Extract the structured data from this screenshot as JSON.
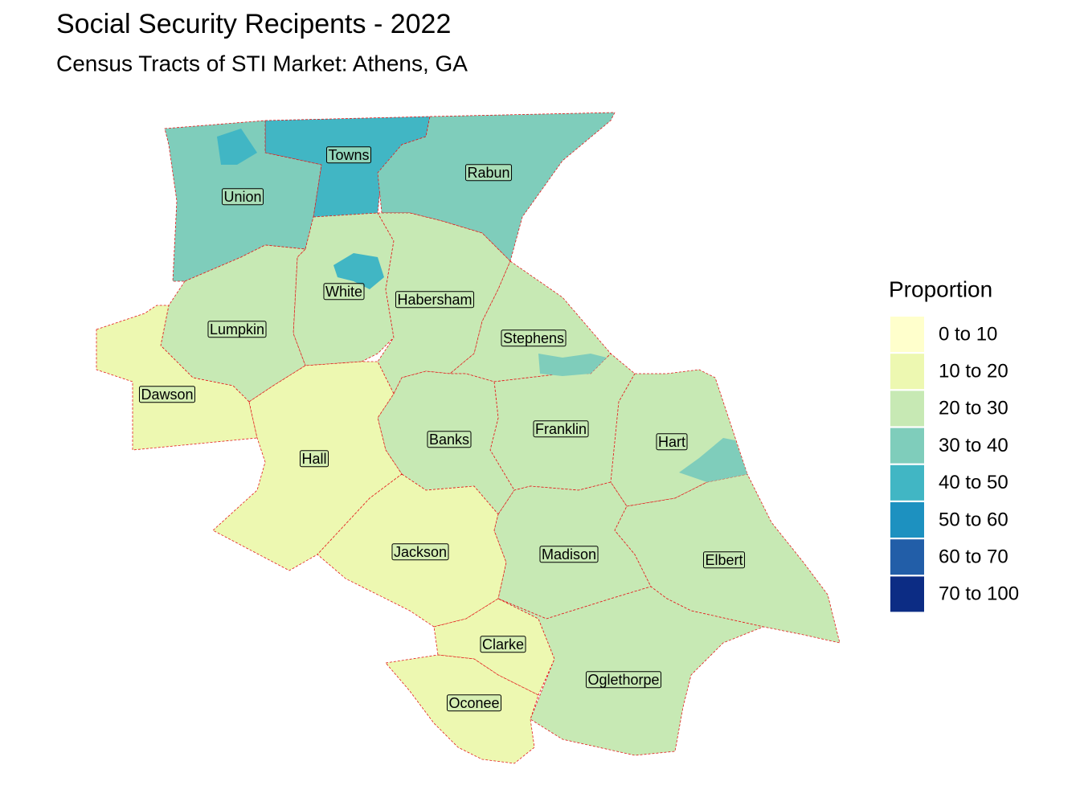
{
  "title": "Social Security Recipents - 2022",
  "subtitle": "Census Tracts of STI Market: Athens, GA",
  "legend": {
    "title": "Proportion",
    "items": [
      {
        "label": "0 to 10",
        "color": "#ffffcc"
      },
      {
        "label": "10 to 20",
        "color": "#edf8b1"
      },
      {
        "label": "20 to 30",
        "color": "#c7e9b4"
      },
      {
        "label": "30 to 40",
        "color": "#7fcdbb"
      },
      {
        "label": "40 to 50",
        "color": "#41b6c4"
      },
      {
        "label": "50 to 60",
        "color": "#1d91c0"
      },
      {
        "label": "60 to 70",
        "color": "#225ea8"
      },
      {
        "label": "70 to 100",
        "color": "#0c2c84"
      }
    ]
  },
  "map": {
    "counties": [
      "Towns",
      "Rabun",
      "Union",
      "White",
      "Habersham",
      "Lumpkin",
      "Stephens",
      "Dawson",
      "Franklin",
      "Banks",
      "Hart",
      "Hall",
      "Jackson",
      "Madison",
      "Elbert",
      "Clarke",
      "Oglethorpe",
      "Oconee"
    ]
  }
}
